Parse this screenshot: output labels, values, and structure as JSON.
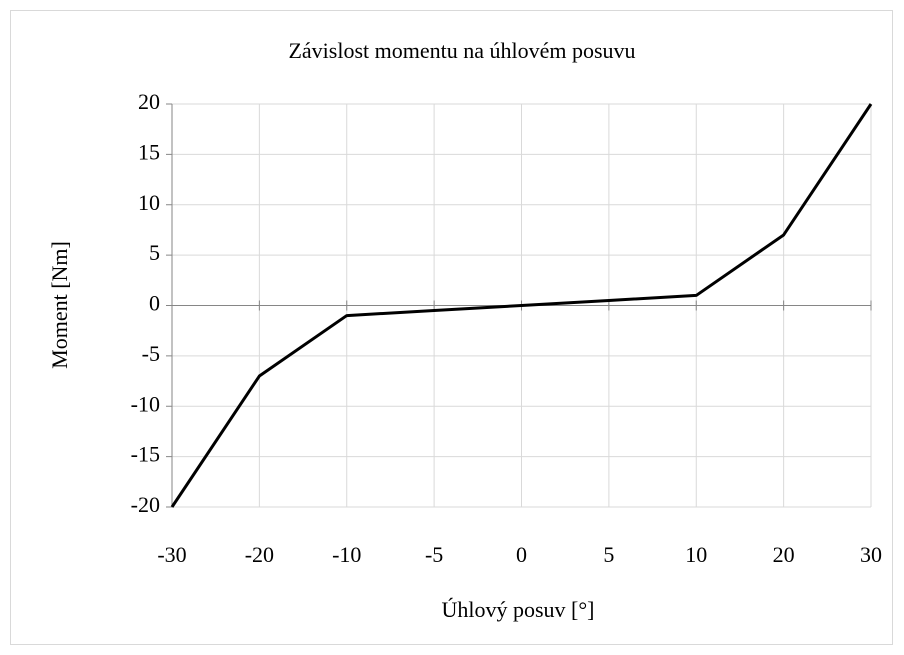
{
  "chart_data": {
    "type": "line",
    "title": "Závislost momentu na úhlovém posuvu",
    "x_label": "Úhlový posuv [°]",
    "y_label": "Moment [Nm]",
    "categories": [
      "-30",
      "-20",
      "-10",
      "-5",
      "0",
      "5",
      "10",
      "20",
      "30"
    ],
    "values": [
      -20,
      -7,
      -1,
      -0.5,
      0,
      0.5,
      1,
      7,
      20
    ],
    "color": "#000000",
    "ylim": [
      -20,
      20
    ],
    "yticks": [
      -20,
      -15,
      -10,
      -5,
      0,
      5,
      10,
      15,
      20
    ],
    "grid": true
  }
}
